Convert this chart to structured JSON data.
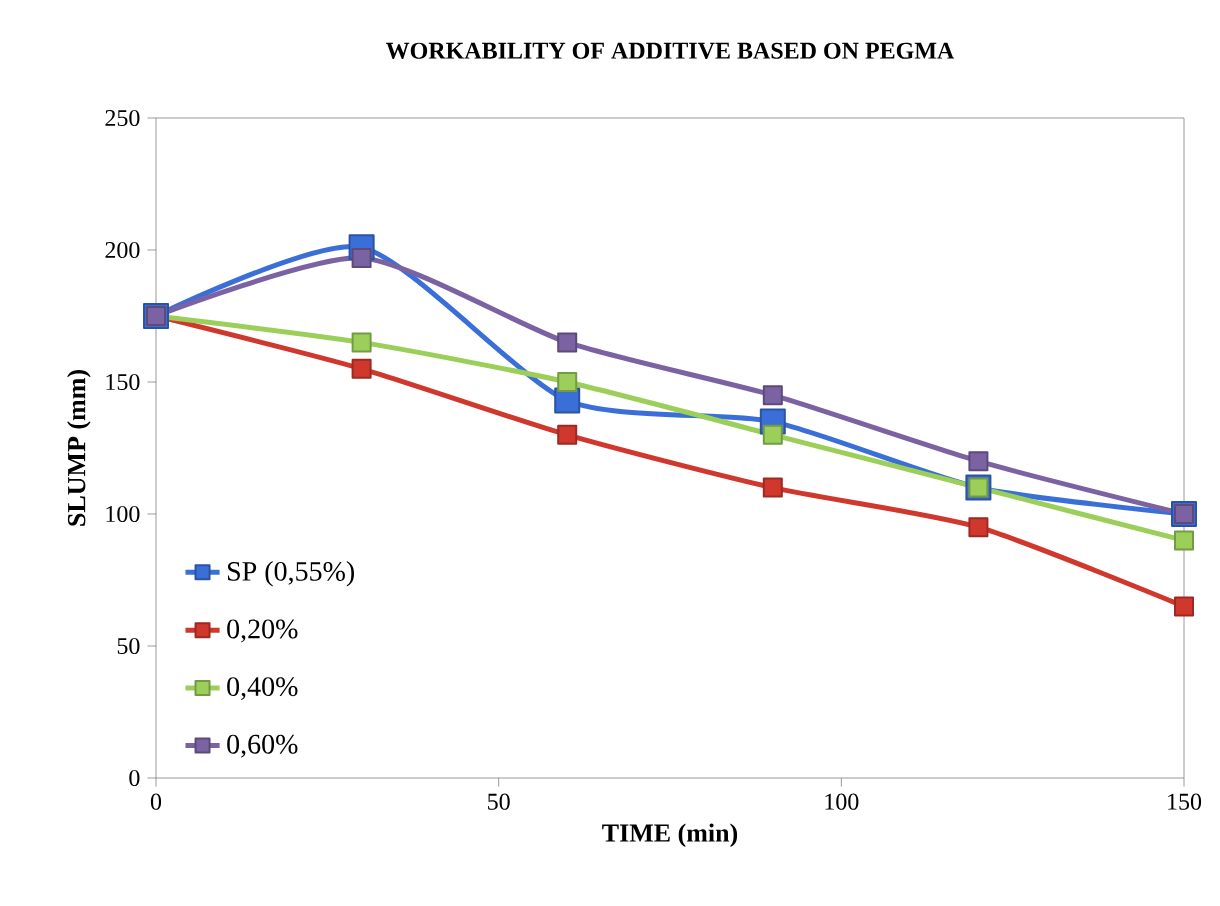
{
  "chart_data": {
    "type": "line",
    "title": "WORKABILITY OF ADDITIVE BASED ON PEGMA",
    "xlabel": "TIME (min)",
    "ylabel": "SLUMP (mm)",
    "x": [
      0,
      30,
      60,
      90,
      120,
      150
    ],
    "series": [
      {
        "name": "SP (0,55%)",
        "color": "#3a6fd8",
        "values": [
          175,
          201,
          143,
          135,
          110,
          100
        ]
      },
      {
        "name": "0,20%",
        "color": "#d0382e",
        "values": [
          175,
          155,
          130,
          110,
          95,
          65
        ]
      },
      {
        "name": "0,40%",
        "color": "#9bcf5a",
        "values": [
          175,
          165,
          150,
          130,
          110,
          90
        ]
      },
      {
        "name": "0,60%",
        "color": "#7b62a3",
        "values": [
          175,
          197,
          165,
          145,
          120,
          100
        ]
      }
    ],
    "xlim": [
      0,
      150
    ],
    "xticks": [
      0,
      50,
      100,
      150
    ],
    "ylim": [
      0,
      250
    ],
    "yticks": [
      0,
      50,
      100,
      150,
      200,
      250
    ],
    "grid": false,
    "legend": "left",
    "marker": "square",
    "line_style": "solid"
  }
}
